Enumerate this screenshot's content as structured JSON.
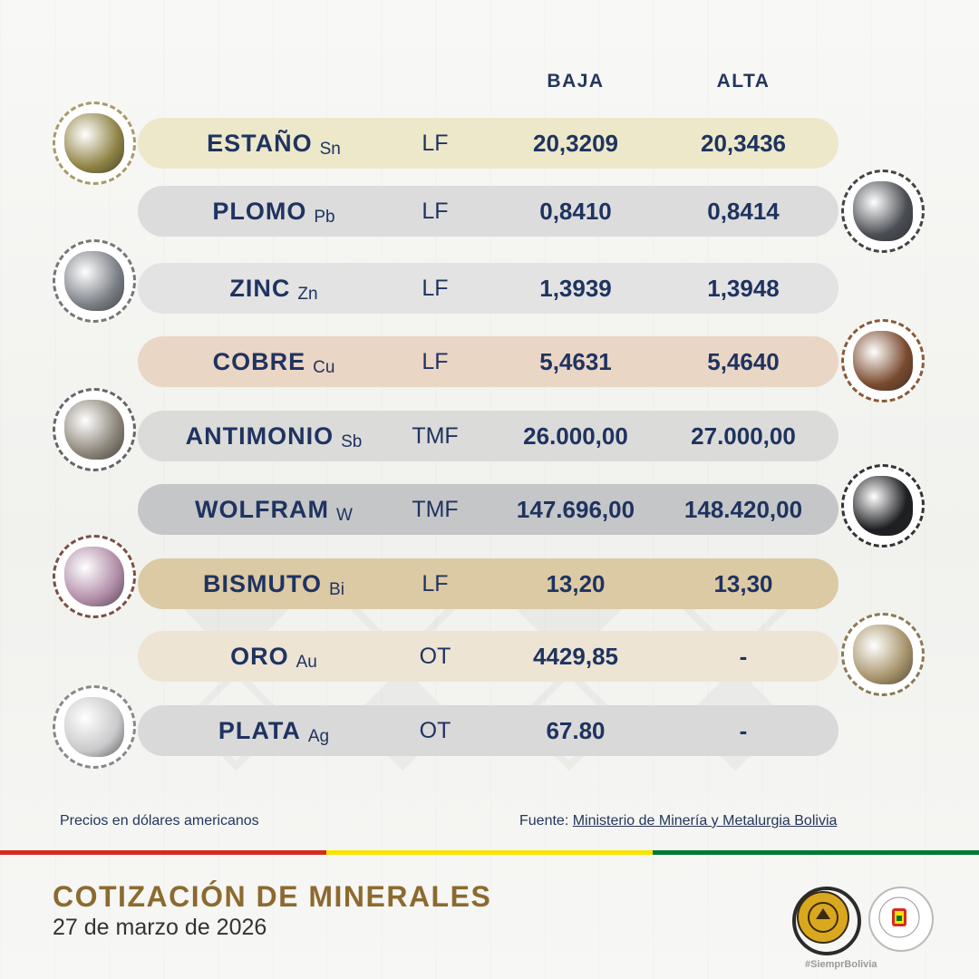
{
  "headers": {
    "baja": "BAJA",
    "alta": "ALTA"
  },
  "minerals": [
    {
      "name": "ESTAÑO",
      "symbol": "Sn",
      "unit": "LF",
      "baja": "20,3209",
      "alta": "20,3436",
      "row_color": "#ece8c9",
      "mineral_color": "#8f8344"
    },
    {
      "name": "PLOMO",
      "symbol": "Pb",
      "unit": "LF",
      "baja": "0,8410",
      "alta": "0,8414",
      "row_color": "#dcdcdc",
      "mineral_color": "#4a4d52"
    },
    {
      "name": "ZINC",
      "symbol": "Zn",
      "unit": "LF",
      "baja": "1,3939",
      "alta": "1,3948",
      "row_color": "#e3e3e3",
      "mineral_color": "#7b7f86"
    },
    {
      "name": "COBRE",
      "symbol": "Cu",
      "unit": "LF",
      "baja": "5,4631",
      "alta": "5,4640",
      "row_color": "#ead6c5",
      "mineral_color": "#7a4a2e"
    },
    {
      "name": "ANTIMONIO",
      "symbol": "Sb",
      "unit": "TMF",
      "baja": "26.000,00",
      "alta": "27.000,00",
      "row_color": "#dbdbd9",
      "mineral_color": "#8b8478"
    },
    {
      "name": "WOLFRAM",
      "symbol": "W",
      "unit": "TMF",
      "baja": "147.696,00",
      "alta": "148.420,00",
      "row_color": "#c5c6c8",
      "mineral_color": "#1e1f22"
    },
    {
      "name": "BISMUTO",
      "symbol": "Bi",
      "unit": "LF",
      "baja": "13,20",
      "alta": "13,30",
      "row_color": "#dccaa5",
      "mineral_color": "#b08ca8"
    },
    {
      "name": "ORO",
      "symbol": "Au",
      "unit": "OT",
      "baja": "4429,85",
      "alta": "-",
      "row_color": "#ede4d4",
      "mineral_color": "#a7936a"
    },
    {
      "name": "PLATA",
      "symbol": "Ag",
      "unit": "OT",
      "baja": "67.80",
      "alta": "-",
      "row_color": "#d9d9d9",
      "mineral_color": "#c9c9cb"
    }
  ],
  "footer": {
    "note": "Precios en dólares americanos",
    "source_label": "Fuente:",
    "source_link": "Ministerio de Minería y Metalurgia Bolivia",
    "title": "COTIZACIÓN DE MINERALES",
    "date": "27 de marzo de 2026",
    "hashtag": "#SiemprBolivia"
  },
  "flag_colors": [
    "#d52b1e",
    "#f9e300",
    "#007934"
  ],
  "logos": {
    "comibol_color": "#d9a81e",
    "presidencia_color": "#ffffff"
  }
}
